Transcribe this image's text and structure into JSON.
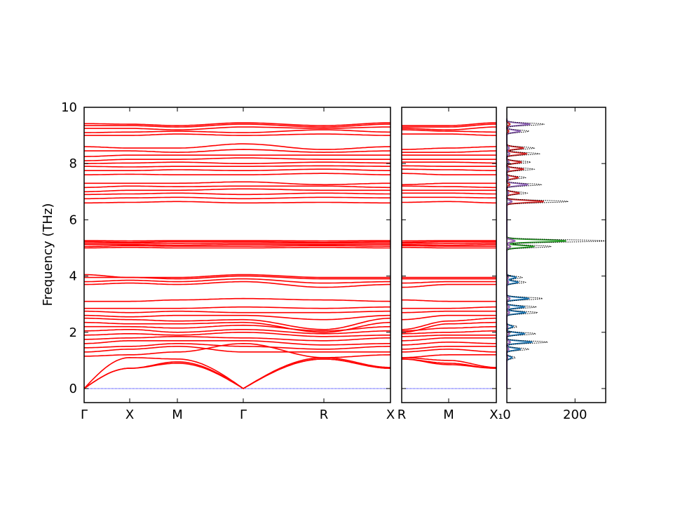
{
  "chart_data": {
    "type": "line",
    "title": "",
    "ylabel": "Frequency (THz)",
    "ylim": [
      -0.5,
      10
    ],
    "yticks": [
      "0",
      "2",
      "4",
      "6",
      "8",
      "10"
    ],
    "grid": false,
    "panels": [
      {
        "kind": "band",
        "kpoints": [
          "Γ",
          "X",
          "M",
          "Γ",
          "R",
          "X"
        ]
      },
      {
        "kind": "band",
        "kpoints": [
          "R",
          "M",
          "X₁"
        ]
      },
      {
        "kind": "dos",
        "xlim": [
          0,
          290
        ],
        "xticks": [
          "0",
          "200"
        ]
      }
    ],
    "band_color": "#ff0000",
    "zero_line_color": "#0000ff",
    "bands": [
      [
        0,
        0.72,
        0.95,
        0,
        1.05,
        0.72,
        1.05,
        0.85,
        0.72
      ],
      [
        0,
        0.72,
        0.9,
        0,
        1.05,
        0.72,
        1.05,
        0.9,
        0.72
      ],
      [
        0,
        1.1,
        1.05,
        0,
        1.1,
        0.75,
        1.1,
        1.0,
        0.75
      ],
      [
        1.15,
        1.2,
        1.3,
        1.6,
        1.1,
        1.2,
        1.1,
        1.2,
        1.2
      ],
      [
        1.3,
        1.4,
        1.5,
        1.3,
        1.3,
        1.3,
        1.3,
        1.4,
        1.3
      ],
      [
        1.45,
        1.5,
        1.6,
        1.5,
        1.4,
        1.5,
        1.4,
        1.5,
        1.5
      ],
      [
        1.6,
        1.7,
        1.7,
        1.7,
        1.55,
        1.6,
        1.55,
        1.65,
        1.6
      ],
      [
        1.75,
        1.8,
        1.85,
        1.8,
        1.7,
        1.8,
        1.7,
        1.8,
        1.8
      ],
      [
        1.9,
        1.95,
        1.9,
        2.0,
        1.85,
        1.9,
        1.85,
        1.9,
        1.9
      ],
      [
        2.05,
        2.1,
        2.0,
        2.1,
        1.95,
        2.05,
        1.95,
        2.0,
        2.05
      ],
      [
        2.2,
        2.2,
        2.15,
        2.25,
        2.05,
        2.2,
        2.05,
        2.15,
        2.2
      ],
      [
        2.35,
        2.3,
        2.3,
        2.35,
        2.0,
        2.35,
        2.0,
        2.3,
        2.35
      ],
      [
        2.5,
        2.45,
        2.4,
        2.45,
        2.1,
        2.5,
        2.1,
        2.4,
        2.5
      ],
      [
        2.6,
        2.55,
        2.6,
        2.6,
        2.45,
        2.6,
        2.45,
        2.6,
        2.6
      ],
      [
        2.75,
        2.7,
        2.75,
        2.7,
        2.7,
        2.75,
        2.7,
        2.75,
        2.75
      ],
      [
        2.85,
        2.85,
        2.85,
        2.9,
        2.85,
        2.9,
        2.85,
        2.85,
        2.9
      ],
      [
        3.1,
        3.1,
        3.15,
        3.2,
        3.15,
        3.1,
        3.15,
        3.1,
        3.1
      ],
      [
        3.7,
        3.75,
        3.7,
        3.8,
        3.6,
        3.7,
        3.6,
        3.7,
        3.7
      ],
      [
        3.8,
        3.85,
        3.8,
        3.9,
        3.75,
        3.8,
        3.75,
        3.8,
        3.8
      ],
      [
        3.95,
        3.95,
        3.9,
        4.0,
        3.9,
        3.9,
        3.9,
        3.9,
        3.9
      ],
      [
        4.05,
        3.95,
        3.95,
        4.05,
        3.95,
        3.95,
        3.95,
        3.95,
        3.95
      ],
      [
        5.0,
        5.02,
        5.0,
        5.0,
        5.02,
        5.0,
        5.02,
        5.0,
        5.0
      ],
      [
        5.05,
        5.08,
        5.06,
        5.06,
        5.08,
        5.06,
        5.08,
        5.06,
        5.06
      ],
      [
        5.12,
        5.12,
        5.1,
        5.12,
        5.12,
        5.12,
        5.12,
        5.1,
        5.12
      ],
      [
        5.17,
        5.17,
        5.16,
        5.17,
        5.17,
        5.17,
        5.17,
        5.16,
        5.17
      ],
      [
        5.22,
        5.2,
        5.22,
        5.22,
        5.2,
        5.22,
        5.2,
        5.22,
        5.22
      ],
      [
        5.26,
        5.25,
        5.26,
        5.26,
        5.25,
        5.26,
        5.25,
        5.26,
        5.26
      ],
      [
        6.6,
        6.62,
        6.65,
        6.6,
        6.62,
        6.6,
        6.62,
        6.65,
        6.6
      ],
      [
        6.75,
        6.78,
        6.8,
        6.75,
        6.8,
        6.78,
        6.8,
        6.8,
        6.78
      ],
      [
        6.9,
        6.92,
        6.95,
        6.9,
        6.95,
        6.92,
        6.95,
        6.95,
        6.92
      ],
      [
        7.0,
        7.05,
        7.05,
        7.1,
        7.05,
        7.05,
        7.05,
        7.05,
        7.05
      ],
      [
        7.15,
        7.2,
        7.18,
        7.2,
        7.2,
        7.15,
        7.2,
        7.18,
        7.15
      ],
      [
        7.3,
        7.3,
        7.3,
        7.35,
        7.25,
        7.3,
        7.25,
        7.3,
        7.3
      ],
      [
        7.6,
        7.62,
        7.6,
        7.6,
        7.65,
        7.6,
        7.65,
        7.6,
        7.6
      ],
      [
        7.75,
        7.75,
        7.78,
        7.75,
        7.8,
        7.75,
        7.8,
        7.78,
        7.75
      ],
      [
        7.9,
        7.88,
        7.9,
        7.9,
        7.92,
        7.9,
        7.92,
        7.9,
        7.9
      ],
      [
        8.0,
        8.02,
        8.05,
        8.0,
        8.05,
        8.02,
        8.05,
        8.05,
        8.02
      ],
      [
        8.1,
        8.15,
        8.15,
        8.2,
        8.15,
        8.15,
        8.15,
        8.15,
        8.15
      ],
      [
        8.25,
        8.3,
        8.3,
        8.3,
        8.3,
        8.3,
        8.3,
        8.3,
        8.3
      ],
      [
        8.45,
        8.45,
        8.4,
        8.5,
        8.4,
        8.45,
        8.4,
        8.4,
        8.45
      ],
      [
        8.6,
        8.55,
        8.55,
        8.7,
        8.5,
        8.6,
        8.5,
        8.55,
        8.6
      ],
      [
        9.0,
        9.0,
        9.05,
        9.0,
        9.05,
        9.0,
        9.05,
        9.05,
        9.0
      ],
      [
        9.1,
        9.12,
        9.15,
        9.1,
        9.2,
        9.12,
        9.2,
        9.15,
        9.12
      ],
      [
        9.25,
        9.25,
        9.2,
        9.3,
        9.25,
        9.3,
        9.25,
        9.2,
        9.3
      ],
      [
        9.35,
        9.35,
        9.3,
        9.4,
        9.3,
        9.4,
        9.3,
        9.3,
        9.4
      ],
      [
        9.42,
        9.4,
        9.35,
        9.45,
        9.35,
        9.45,
        9.35,
        9.35,
        9.45
      ]
    ],
    "dos_total_style": "dotted black",
    "dos_partial_colors": [
      "#1f77b4",
      "#ff7f0e",
      "#2ca02c",
      "#d62728",
      "#9467bd"
    ],
    "dos_peaks": [
      {
        "freq": 9.4,
        "total": 110,
        "partial": 4
      },
      {
        "freq": 9.15,
        "total": 65,
        "partial": 4
      },
      {
        "freq": 8.55,
        "total": 80,
        "partial": 3
      },
      {
        "freq": 8.35,
        "total": 95,
        "partial": 3
      },
      {
        "freq": 8.05,
        "total": 70,
        "partial": 3
      },
      {
        "freq": 7.8,
        "total": 80,
        "partial": 3
      },
      {
        "freq": 7.5,
        "total": 55,
        "partial": 3
      },
      {
        "freq": 7.25,
        "total": 100,
        "partial": 4
      },
      {
        "freq": 6.95,
        "total": 60,
        "partial": 3
      },
      {
        "freq": 6.65,
        "total": 180,
        "partial": 3
      },
      {
        "freq": 5.25,
        "total": 290,
        "partial": 2
      },
      {
        "freq": 5.05,
        "total": 130,
        "partial": 2
      },
      {
        "freq": 3.95,
        "total": 45,
        "partial": 0
      },
      {
        "freq": 3.78,
        "total": 55,
        "partial": 0
      },
      {
        "freq": 3.2,
        "total": 105,
        "partial": 0
      },
      {
        "freq": 2.9,
        "total": 85,
        "partial": 0
      },
      {
        "freq": 2.7,
        "total": 90,
        "partial": 0
      },
      {
        "freq": 2.2,
        "total": 30,
        "partial": 0
      },
      {
        "freq": 1.95,
        "total": 85,
        "partial": 0
      },
      {
        "freq": 1.65,
        "total": 120,
        "partial": 0
      },
      {
        "freq": 1.4,
        "total": 65,
        "partial": 0
      },
      {
        "freq": 1.1,
        "total": 25,
        "partial": 0
      }
    ]
  }
}
